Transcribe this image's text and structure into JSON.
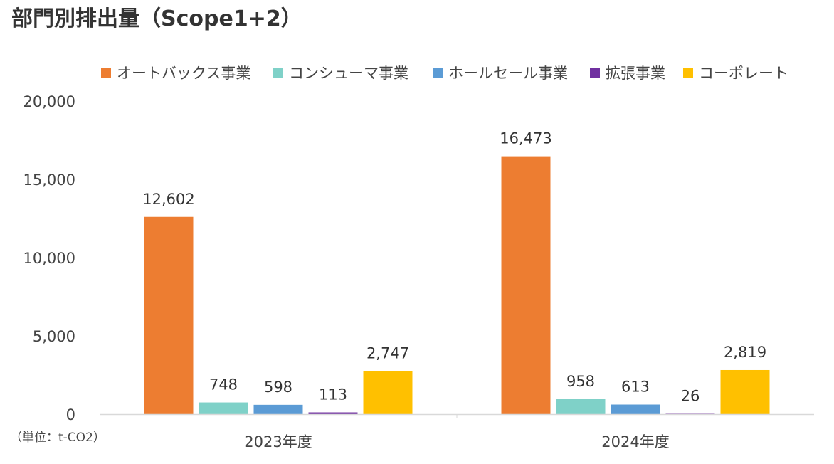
{
  "chart_data": {
    "type": "bar",
    "title": "部門別排出量（Scope1+2）",
    "unit_note": "（単位：t-CO2）",
    "categories": [
      "2023年度",
      "2024年度"
    ],
    "series": [
      {
        "name": "オートバックス事業",
        "color": "#ED7D31",
        "values": [
          12602,
          16473
        ],
        "labels": [
          "12,602",
          "16,473"
        ]
      },
      {
        "name": "コンシューマ事業",
        "color": "#7FD1C8",
        "values": [
          748,
          958
        ],
        "labels": [
          "748",
          "958"
        ]
      },
      {
        "name": "ホールセール事業",
        "color": "#5B9BD5",
        "values": [
          598,
          613
        ],
        "labels": [
          "598",
          "613"
        ]
      },
      {
        "name": "拡張事業",
        "color": "#7030A0",
        "values": [
          113,
          26
        ],
        "labels": [
          "113",
          "26"
        ]
      },
      {
        "name": "コーポレート",
        "color": "#FFC000",
        "values": [
          2747,
          2819
        ],
        "labels": [
          "2,747",
          "2,819"
        ]
      }
    ],
    "yticks": [
      "0",
      "5,000",
      "10,000",
      "15,000",
      "20,000"
    ],
    "ylim": [
      0,
      20000
    ],
    "legend_position": "top",
    "grid": false
  }
}
